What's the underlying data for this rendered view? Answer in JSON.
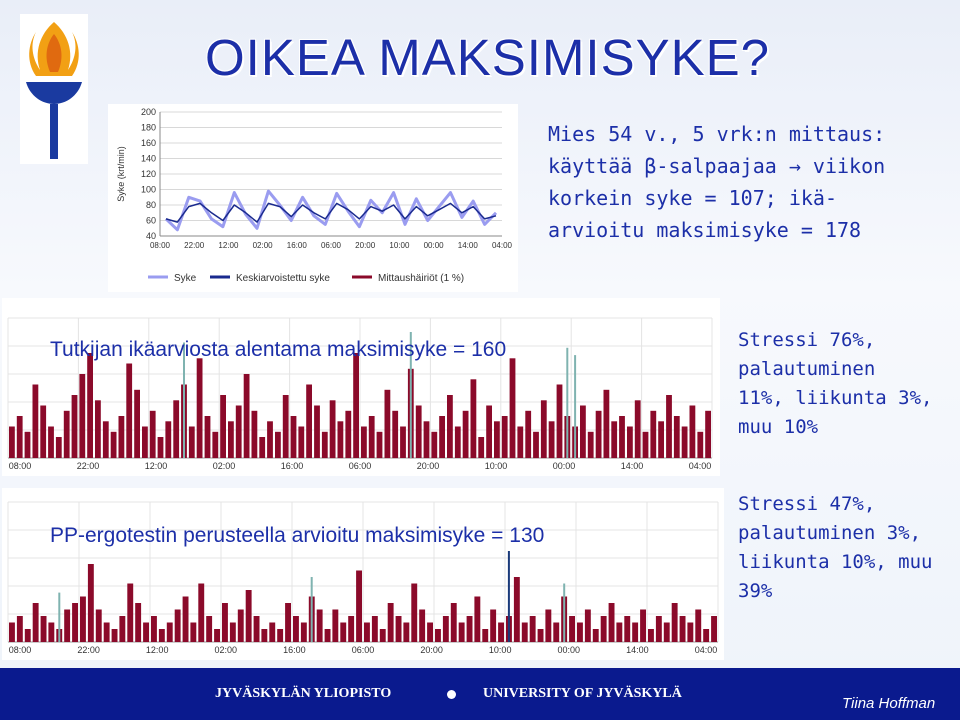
{
  "title": "OIKEA MAKSIMISYKE?",
  "intro_lines": [
    "Mies 54 v., 5 vrk:n mittaus:",
    "käyttää β-salpaajaa → viikon",
    "korkein syke = 107; ikä-",
    "arvioitu maksimisyke = 178"
  ],
  "panel1": {
    "label": "Tutkijan ikäarviosta alentama maksimisyke = 160",
    "stress_lines": [
      "Stressi 76%,",
      "palautuminen",
      "11%, liikunta 3%,",
      "muu 10%"
    ]
  },
  "panel2": {
    "label": "PP-ergotestin perusteella arvioitu maksimisyke = 130",
    "stress_lines": [
      "Stressi 47%,",
      "palautuminen 3%,",
      "liikunta 10%, muu",
      "39%"
    ]
  },
  "footer": {
    "left": "JYVÄSKYLÄN YLIOPISTO",
    "right": "UNIVERSITY OF JYVÄSKYLÄ",
    "author": "Tiina Hoffman"
  },
  "colors": {
    "title": "#1c2fa8",
    "footer_bg": "#0a1a8e",
    "bar_red": "#8b0a2a",
    "bar_teal": "#7fb3b0",
    "hr_light": "#9a9cf0",
    "hr_dark": "#1a2a8e"
  },
  "chart_data": [
    {
      "type": "line",
      "ylabel": "Syke (krt/min)",
      "yticks": [
        40,
        60,
        80,
        100,
        120,
        140,
        160,
        180,
        200
      ],
      "ylim": [
        40,
        200
      ],
      "xticks": [
        "08:00",
        "22:00",
        "12:00",
        "02:00",
        "16:00",
        "06:00",
        "20:00",
        "10:00",
        "00:00",
        "14:00",
        "04:00"
      ],
      "legend": [
        "Syke",
        "Keskiarvoistettu syke",
        "Mittaushäiriöt (1 %)"
      ],
      "series": [
        {
          "name": "Syke",
          "values": [
            62,
            48,
            90,
            85,
            62,
            52,
            96,
            68,
            50,
            98,
            80,
            60,
            90,
            66,
            55,
            95,
            72,
            52,
            86,
            70,
            96,
            55,
            88,
            60,
            78,
            96,
            64,
            85,
            55,
            70
          ]
        },
        {
          "name": "Keskiarvoistettu syke",
          "values": [
            62,
            58,
            78,
            82,
            70,
            60,
            80,
            70,
            58,
            82,
            78,
            65,
            80,
            70,
            62,
            82,
            74,
            62,
            78,
            72,
            80,
            62,
            78,
            66,
            74,
            82,
            70,
            78,
            62,
            66
          ]
        }
      ]
    },
    {
      "type": "bar",
      "xticks": [
        "08:00",
        "22:00",
        "12:00",
        "02:00",
        "16:00",
        "06:00",
        "20:00",
        "10:00",
        "00:00",
        "14:00",
        "04:00"
      ],
      "values": [
        30,
        40,
        25,
        70,
        50,
        30,
        20,
        45,
        60,
        80,
        100,
        55,
        35,
        25,
        40,
        90,
        65,
        30,
        45,
        20,
        35,
        55,
        70,
        30,
        95,
        40,
        25,
        60,
        35,
        50,
        80,
        45,
        20,
        35,
        25,
        60,
        40,
        30,
        70,
        50,
        25,
        55,
        35,
        45,
        100,
        30,
        40,
        25,
        65,
        45,
        30,
        85,
        50,
        35,
        25,
        40,
        60,
        30,
        45,
        75,
        20,
        50,
        35,
        40,
        95,
        30,
        45,
        25,
        55,
        35,
        70,
        40,
        30,
        50,
        25,
        45,
        65,
        35,
        40,
        30,
        55,
        25,
        45,
        35,
        60,
        40,
        30,
        50,
        25,
        45
      ],
      "highlights": [
        {
          "x_index": 22,
          "value": 110,
          "color": "teal"
        },
        {
          "x_index": 51,
          "value": 120,
          "color": "teal"
        },
        {
          "x_index": 71,
          "value": 105,
          "color": "teal"
        },
        {
          "x_index": 72,
          "value": 98,
          "color": "teal"
        }
      ]
    },
    {
      "type": "bar",
      "xticks": [
        "08:00",
        "22:00",
        "12:00",
        "02:00",
        "16:00",
        "06:00",
        "20:00",
        "10:00",
        "00:00",
        "14:00",
        "04:00"
      ],
      "values": [
        15,
        20,
        10,
        30,
        20,
        15,
        10,
        25,
        30,
        35,
        60,
        25,
        15,
        10,
        20,
        45,
        30,
        15,
        20,
        10,
        15,
        25,
        35,
        15,
        45,
        20,
        10,
        30,
        15,
        25,
        40,
        20,
        10,
        15,
        10,
        30,
        20,
        15,
        35,
        25,
        10,
        25,
        15,
        20,
        55,
        15,
        20,
        10,
        30,
        20,
        15,
        45,
        25,
        15,
        10,
        20,
        30,
        15,
        20,
        35,
        10,
        25,
        15,
        20,
        50,
        15,
        20,
        10,
        25,
        15,
        35,
        20,
        15,
        25,
        10,
        20,
        30,
        15,
        20,
        15,
        25,
        10,
        20,
        15,
        30,
        20,
        15,
        25,
        10,
        20
      ],
      "highlights": [
        {
          "x_index": 6,
          "value": 38,
          "color": "teal"
        },
        {
          "x_index": 38,
          "value": 50,
          "color": "teal"
        },
        {
          "x_index": 63,
          "value": 70,
          "color": "navy"
        },
        {
          "x_index": 70,
          "value": 45,
          "color": "teal"
        }
      ]
    }
  ]
}
